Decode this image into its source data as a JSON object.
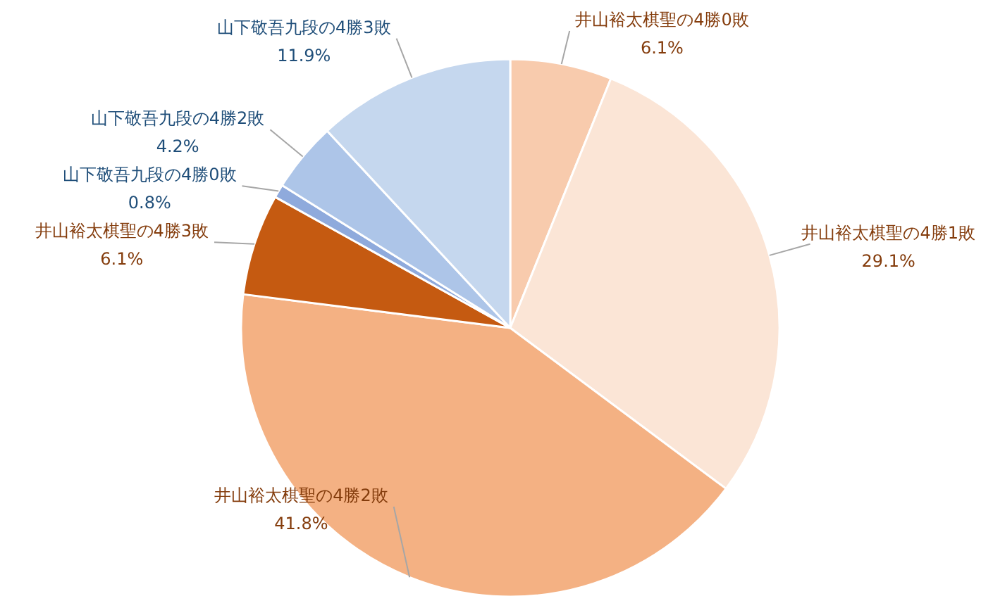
{
  "chart_data": {
    "type": "pie",
    "categories": [
      "井山裕太棋聖の4勝0敗",
      "井山裕太棋聖の4勝1敗",
      "井山裕太棋聖の4勝2敗",
      "井山裕太棋聖の4勝3敗",
      "山下敬吾九段の4勝0敗",
      "山下敬吾九段の4勝2敗",
      "山下敬吾九段の4勝3敗"
    ],
    "values": [
      6.1,
      29.1,
      41.8,
      6.1,
      0.8,
      4.2,
      11.9
    ],
    "colors": [
      "#f8cbad",
      "#fbe5d6",
      "#f4b183",
      "#c55a11",
      "#8faadc",
      "#adc5e8",
      "#c5d7ee"
    ],
    "value_labels": [
      "6.1%",
      "29.1%",
      "41.8%",
      "6.1%",
      "0.8%",
      "4.2%",
      "11.9%"
    ]
  }
}
